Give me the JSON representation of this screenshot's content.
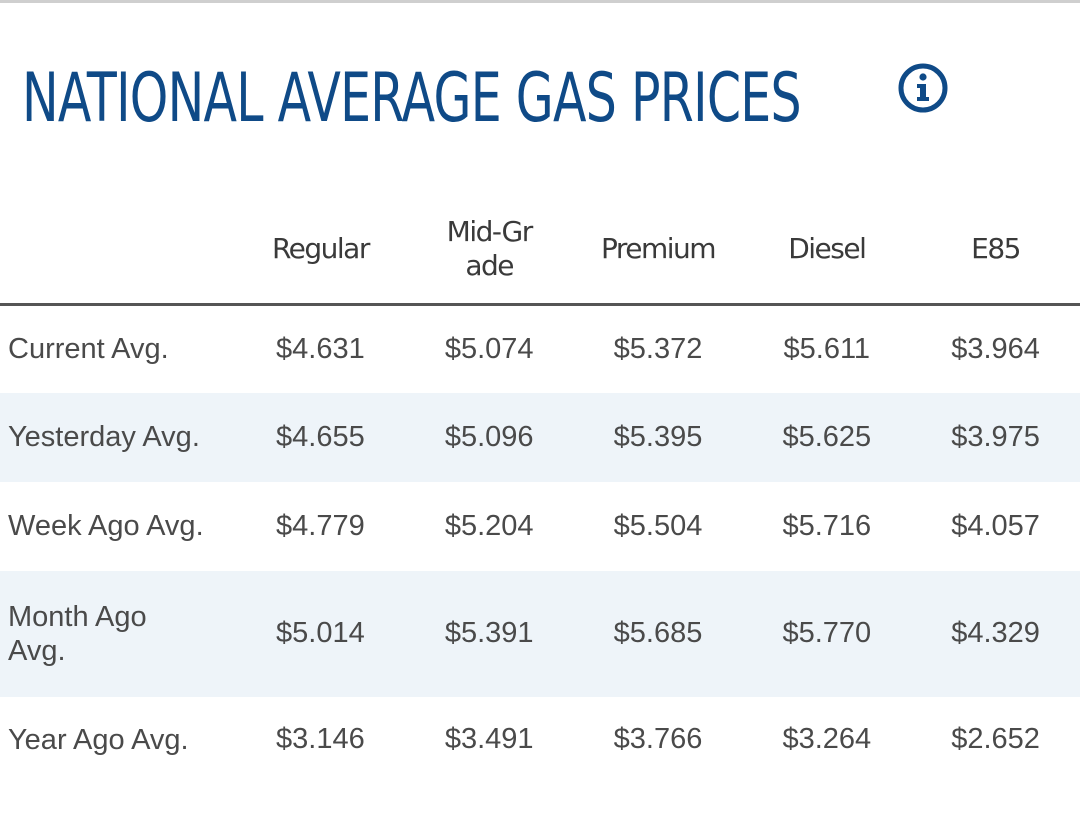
{
  "title": "NATIONAL AVERAGE GAS PRICES",
  "info_icon": "info-circle-icon",
  "colors": {
    "title": "#0f4a87",
    "header_text": "#3a3a3a",
    "cell_text": "#4a4a4a",
    "alt_row_bg": "#eef4f9",
    "header_rule": "#555555"
  },
  "table": {
    "columns": [
      "Regular",
      "Mid-Grade",
      "Premium",
      "Diesel",
      "E85"
    ],
    "rows": [
      {
        "label": "Current Avg.",
        "values": [
          "$4.631",
          "$5.074",
          "$5.372",
          "$5.611",
          "$3.964"
        ]
      },
      {
        "label": "Yesterday Avg.",
        "values": [
          "$4.655",
          "$5.096",
          "$5.395",
          "$5.625",
          "$3.975"
        ]
      },
      {
        "label": "Week Ago Avg.",
        "values": [
          "$4.779",
          "$5.204",
          "$5.504",
          "$5.716",
          "$4.057"
        ]
      },
      {
        "label": "Month Ago Avg.",
        "values": [
          "$5.014",
          "$5.391",
          "$5.685",
          "$5.770",
          "$4.329"
        ]
      },
      {
        "label": "Year Ago Avg.",
        "values": [
          "$3.146",
          "$3.491",
          "$3.766",
          "$3.264",
          "$2.652"
        ]
      }
    ]
  }
}
